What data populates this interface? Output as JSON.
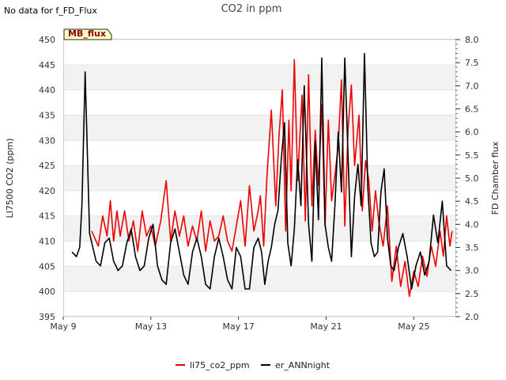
{
  "note": "No data for f_FD_Flux",
  "chart_data": {
    "type": "line",
    "title": "CO2 in ppm",
    "ylabel": "LI7500 CO2 (ppm)",
    "y2label": "FD Chamber flux",
    "badge": "MB_flux",
    "x_ticks": [
      "May 9",
      "May 13",
      "May 17",
      "May 21",
      "May 25"
    ],
    "xlim": [
      "May 9",
      "May 26.9"
    ],
    "ylim": [
      395,
      450
    ],
    "y_ticks": [
      "395",
      "400",
      "405",
      "410",
      "415",
      "420",
      "425",
      "430",
      "435",
      "440",
      "445",
      "450"
    ],
    "y2lim": [
      2.0,
      8.0
    ],
    "y2_ticks": [
      "2.0",
      "2.5",
      "3.0",
      "3.5",
      "4.0",
      "4.5",
      "5.0",
      "5.5",
      "6.0",
      "6.5",
      "7.0",
      "7.5",
      "8.0"
    ],
    "grid": "horizontal bands",
    "legend_position": "bottom-center",
    "series": [
      {
        "name": "li75_co2_ppm",
        "color": "#ee0000",
        "x": [
          "May 10.3",
          "May 10.6",
          "May 10.8",
          "May 11",
          "May 11.15",
          "May 11.3",
          "May 11.45",
          "May 11.6",
          "May 11.8",
          "May 12",
          "May 12.2",
          "May 12.4",
          "May 12.6",
          "May 12.8",
          "May 13",
          "May 13.2",
          "May 13.45",
          "May 13.7",
          "May 13.9",
          "May 14.1",
          "May 14.3",
          "May 14.5",
          "May 14.7",
          "May 14.9",
          "May 15.1",
          "May 15.3",
          "May 15.5",
          "May 15.7",
          "May 15.9",
          "May 16.1",
          "May 16.3",
          "May 16.5",
          "May 16.7",
          "May 16.9",
          "May 17.1",
          "May 17.3",
          "May 17.5",
          "May 17.7",
          "May 17.9",
          "May 18",
          "May 18.15",
          "May 18.3",
          "May 18.5",
          "May 18.7",
          "May 18.85",
          "May 19",
          "May 19.15",
          "May 19.3",
          "May 19.4",
          "May 19.55",
          "May 19.7",
          "May 19.9",
          "May 20.05",
          "May 20.2",
          "May 20.35",
          "May 20.5",
          "May 20.65",
          "May 20.8",
          "May 20.95",
          "May 21.1",
          "May 21.25",
          "May 21.4",
          "May 21.55",
          "May 21.7",
          "May 21.85",
          "May 22",
          "May 22.15",
          "May 22.3",
          "May 22.5",
          "May 22.65",
          "May 22.8",
          "May 22.95",
          "May 23.1",
          "May 23.25",
          "May 23.4",
          "May 23.6",
          "May 23.8",
          "May 24",
          "May 24.2",
          "May 24.4",
          "May 24.6",
          "May 24.8",
          "May 25",
          "May 25.2",
          "May 25.4",
          "May 25.6",
          "May 25.8",
          "May 26",
          "May 26.2",
          "May 26.35",
          "May 26.5",
          "May 26.65",
          "May 26.75"
        ],
        "values": [
          412,
          409,
          415,
          411,
          418,
          410,
          416,
          411,
          416,
          410,
          414,
          408,
          416,
          411,
          413,
          409,
          414,
          422,
          410,
          416,
          411,
          415,
          409,
          413,
          410,
          416,
          408,
          414,
          410,
          411,
          415,
          410,
          408,
          413,
          418,
          409,
          421,
          412,
          416,
          419,
          409,
          423,
          436,
          417,
          431,
          440,
          412,
          434,
          420,
          446,
          422,
          439,
          414,
          443,
          417,
          432,
          421,
          437,
          413,
          434,
          418,
          423,
          429,
          442,
          413,
          432,
          441,
          425,
          435,
          416,
          426,
          422,
          412,
          420,
          414,
          409,
          417,
          402,
          409,
          401,
          406,
          399,
          404,
          401,
          407,
          403,
          409,
          405,
          412,
          407,
          415,
          409,
          412
        ]
      },
      {
        "name": "er_ANNnight",
        "color": "#000000",
        "x": [
          "May 9.4",
          "May 9.6",
          "May 9.75",
          "May 9.85",
          "May 10",
          "May 10.2",
          "May 10.35",
          "May 10.5",
          "May 10.7",
          "May 10.9",
          "May 11.1",
          "May 11.3",
          "May 11.5",
          "May 11.7",
          "May 11.9",
          "May 12.1",
          "May 12.3",
          "May 12.5",
          "May 12.7",
          "May 12.9",
          "May 13.1",
          "May 13.3",
          "May 13.5",
          "May 13.7",
          "May 13.9",
          "May 14.1",
          "May 14.3",
          "May 14.5",
          "May 14.7",
          "May 14.9",
          "May 15.1",
          "May 15.3",
          "May 15.5",
          "May 15.7",
          "May 15.9",
          "May 16.1",
          "May 16.3",
          "May 16.5",
          "May 16.7",
          "May 16.9",
          "May 17.1",
          "May 17.3",
          "May 17.5",
          "May 17.7",
          "May 17.9",
          "May 18.05",
          "May 18.2",
          "May 18.35",
          "May 18.5",
          "May 18.65",
          "May 18.8",
          "May 18.95",
          "May 19.1",
          "May 19.25",
          "May 19.4",
          "May 19.55",
          "May 19.7",
          "May 19.85",
          "May 20",
          "May 20.2",
          "May 20.35",
          "May 20.5",
          "May 20.65",
          "May 20.8",
          "May 20.95",
          "May 21.1",
          "May 21.25",
          "May 21.4",
          "May 21.55",
          "May 21.7",
          "May 21.85",
          "May 22",
          "May 22.15",
          "May 22.3",
          "May 22.45",
          "May 22.6",
          "May 22.75",
          "May 22.9",
          "May 23.05",
          "May 23.2",
          "May 23.35",
          "May 23.5",
          "May 23.65",
          "May 23.8",
          "May 23.95",
          "May 24.1",
          "May 24.3",
          "May 24.5",
          "May 24.7",
          "May 24.9",
          "May 25.1",
          "May 25.3",
          "May 25.5",
          "May 25.7",
          "May 25.9",
          "May 26.1",
          "May 26.3",
          "May 26.5",
          "May 26.7"
        ],
        "values": [
          3.4,
          3.3,
          3.5,
          4.4,
          7.3,
          3.8,
          3.5,
          3.2,
          3.1,
          3.6,
          3.7,
          3.2,
          3.0,
          3.1,
          3.6,
          3.9,
          3.3,
          3.0,
          3.1,
          3.7,
          4.0,
          3.1,
          2.8,
          2.7,
          3.6,
          3.9,
          3.4,
          2.9,
          2.7,
          3.4,
          3.7,
          3.3,
          2.7,
          2.6,
          3.3,
          3.7,
          3.3,
          2.8,
          2.6,
          3.5,
          3.3,
          2.6,
          2.6,
          3.5,
          3.7,
          3.4,
          2.7,
          3.2,
          3.5,
          4.0,
          4.3,
          5.4,
          6.2,
          3.6,
          3.1,
          3.9,
          5.4,
          4.4,
          7.0,
          4.0,
          3.2,
          5.8,
          4.1,
          7.6,
          4.0,
          3.5,
          3.2,
          4.4,
          6.0,
          4.7,
          7.6,
          5.5,
          3.3,
          4.6,
          5.3,
          4.4,
          7.7,
          4.8,
          3.6,
          3.3,
          3.4,
          4.7,
          5.2,
          3.7,
          3.1,
          3.0,
          3.5,
          3.8,
          3.3,
          2.6,
          3.1,
          3.4,
          2.9,
          3.2,
          4.2,
          3.6,
          4.5,
          3.1,
          3.0
        ]
      }
    ]
  }
}
